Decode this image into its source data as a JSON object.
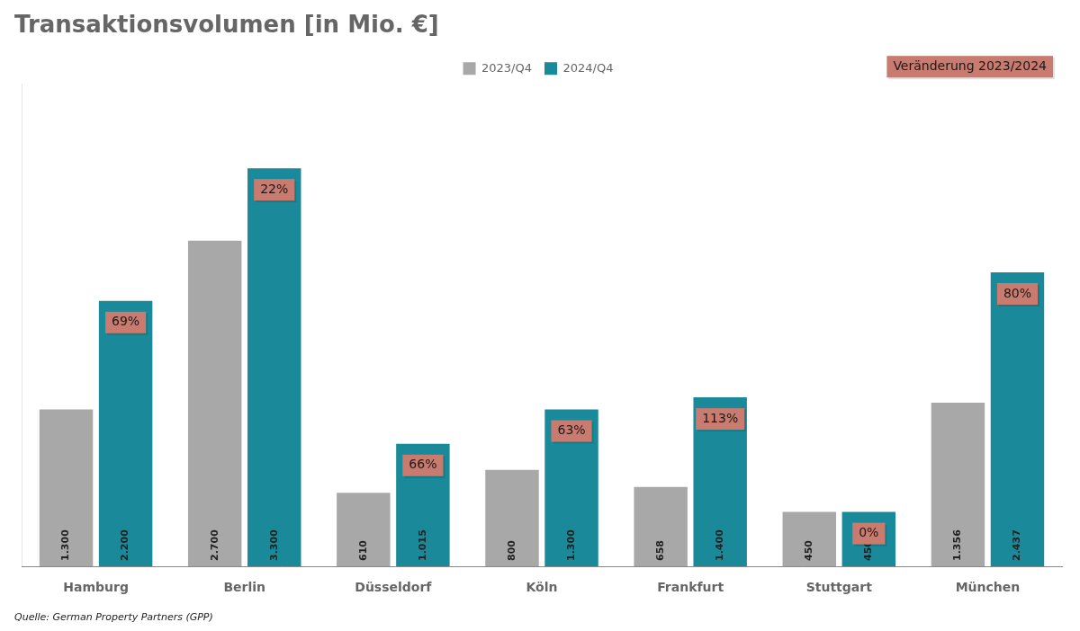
{
  "chart_data": {
    "type": "bar",
    "title": "Transaktionsvolumen [in Mio. €]",
    "categories": [
      "Hamburg",
      "Berlin",
      "Düsseldorf",
      "Köln",
      "Frankfurt",
      "Stuttgart",
      "München"
    ],
    "series": [
      {
        "name": "2023/Q4",
        "color": "#a8a8a8",
        "values": [
          1300,
          2700,
          610,
          800,
          658,
          450,
          1356
        ],
        "value_labels": [
          "1.300",
          "2.700",
          "610",
          "800",
          "658",
          "450",
          "1.356"
        ]
      },
      {
        "name": "2024/Q4",
        "color": "#1a8a9a",
        "values": [
          2200,
          3300,
          1015,
          1300,
          1400,
          450,
          2437
        ],
        "value_labels": [
          "2.200",
          "3.300",
          "1.015",
          "1.300",
          "1.400",
          "450",
          "2.437"
        ]
      }
    ],
    "ylim": [
      0,
      4000
    ],
    "grid": false,
    "legend": "top",
    "data_labels": true,
    "tick_labels": "x",
    "annotations": [
      {
        "category": "Hamburg",
        "text": "69%",
        "color": "#c87b6e"
      },
      {
        "category": "Berlin",
        "text": "22%",
        "color": "#c87b6e"
      },
      {
        "category": "Düsseldorf",
        "text": "66%",
        "color": "#c87b6e"
      },
      {
        "category": "Köln",
        "text": "63%",
        "color": "#c87b6e"
      },
      {
        "category": "Frankfurt",
        "text": "113%",
        "color": "#c87b6e"
      },
      {
        "category": "Stuttgart",
        "text": "0%",
        "color": "#c87b6e"
      },
      {
        "category": "München",
        "text": "80%",
        "color": "#c87b6e"
      },
      {
        "text": "Veränderung 2023/2024",
        "color": "#c87b6e"
      }
    ],
    "source": "Quelle: German Property Partners (GPP)"
  }
}
